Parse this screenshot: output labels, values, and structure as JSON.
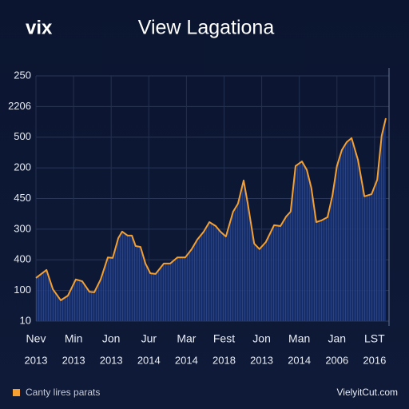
{
  "chart_data": {
    "type": "area",
    "logo": "vix",
    "title": "View Lagationa",
    "x": [
      0,
      0.28,
      0.45,
      0.66,
      0.85,
      1.06,
      1.23,
      1.42,
      1.55,
      1.72,
      1.91,
      2.04,
      2.19,
      2.29,
      2.44,
      2.55,
      2.65,
      2.78,
      2.91,
      3.04,
      3.18,
      3.4,
      3.57,
      3.76,
      3.97,
      4.14,
      4.29,
      4.46,
      4.61,
      4.78,
      4.9,
      5.05,
      5.24,
      5.37,
      5.52,
      5.63,
      5.8,
      5.94,
      6.11,
      6.33,
      6.5,
      6.65,
      6.77,
      6.9,
      7.07,
      7.2,
      7.32,
      7.45,
      7.58,
      7.75,
      7.88,
      8.0,
      8.13,
      8.26,
      8.39,
      8.56,
      8.73,
      8.92,
      9.07,
      9.19,
      9.3
    ],
    "series": [
      {
        "name": "Canty lires parats",
        "color": "#f5a030",
        "fill": "#1a3170",
        "values": [
          1.41,
          1.67,
          1.04,
          0.68,
          0.83,
          1.36,
          1.3,
          0.96,
          0.94,
          1.36,
          2.08,
          2.06,
          2.71,
          2.92,
          2.79,
          2.79,
          2.45,
          2.42,
          1.88,
          1.56,
          1.54,
          1.88,
          1.88,
          2.08,
          2.08,
          2.35,
          2.66,
          2.92,
          3.23,
          3.1,
          2.92,
          2.76,
          3.57,
          3.83,
          4.59,
          3.83,
          2.53,
          2.35,
          2.58,
          3.13,
          3.1,
          3.41,
          3.57,
          5.06,
          5.21,
          4.93,
          4.35,
          3.23,
          3.28,
          3.39,
          4.09,
          5.06,
          5.58,
          5.84,
          5.97,
          5.26,
          4.07,
          4.14,
          4.61,
          6.05,
          6.62
        ]
      }
    ],
    "xlim": [
      0,
      9.3
    ],
    "xticks": [
      {
        "value": 0,
        "label": "Nev"
      },
      {
        "value": 1,
        "label": "Min"
      },
      {
        "value": 2,
        "label": "Jon"
      },
      {
        "value": 3,
        "label": "Jur"
      },
      {
        "value": 4,
        "label": "Mar"
      },
      {
        "value": 5,
        "label": "Fest"
      },
      {
        "value": 6,
        "label": "Jon"
      },
      {
        "value": 7,
        "label": "Man"
      },
      {
        "value": 8,
        "label": "Jan"
      },
      {
        "value": 9,
        "label": "LST"
      }
    ],
    "xtick_years": [
      "2013",
      "2013",
      "2013",
      "2014",
      "2014",
      "2018",
      "2013",
      "2014",
      "2006",
      "2016"
    ],
    "ylim": [
      0,
      8
    ],
    "yticks": [
      {
        "value": 0,
        "label": "10"
      },
      {
        "value": 1,
        "label": "100"
      },
      {
        "value": 2,
        "label": "400"
      },
      {
        "value": 3,
        "label": "300"
      },
      {
        "value": 4,
        "label": "450"
      },
      {
        "value": 5,
        "label": "200"
      },
      {
        "value": 6,
        "label": "500"
      },
      {
        "value": 7,
        "label": "2206"
      },
      {
        "value": 8,
        "label": "250"
      }
    ],
    "grid": true,
    "watermark": "VielyitCut.com"
  }
}
